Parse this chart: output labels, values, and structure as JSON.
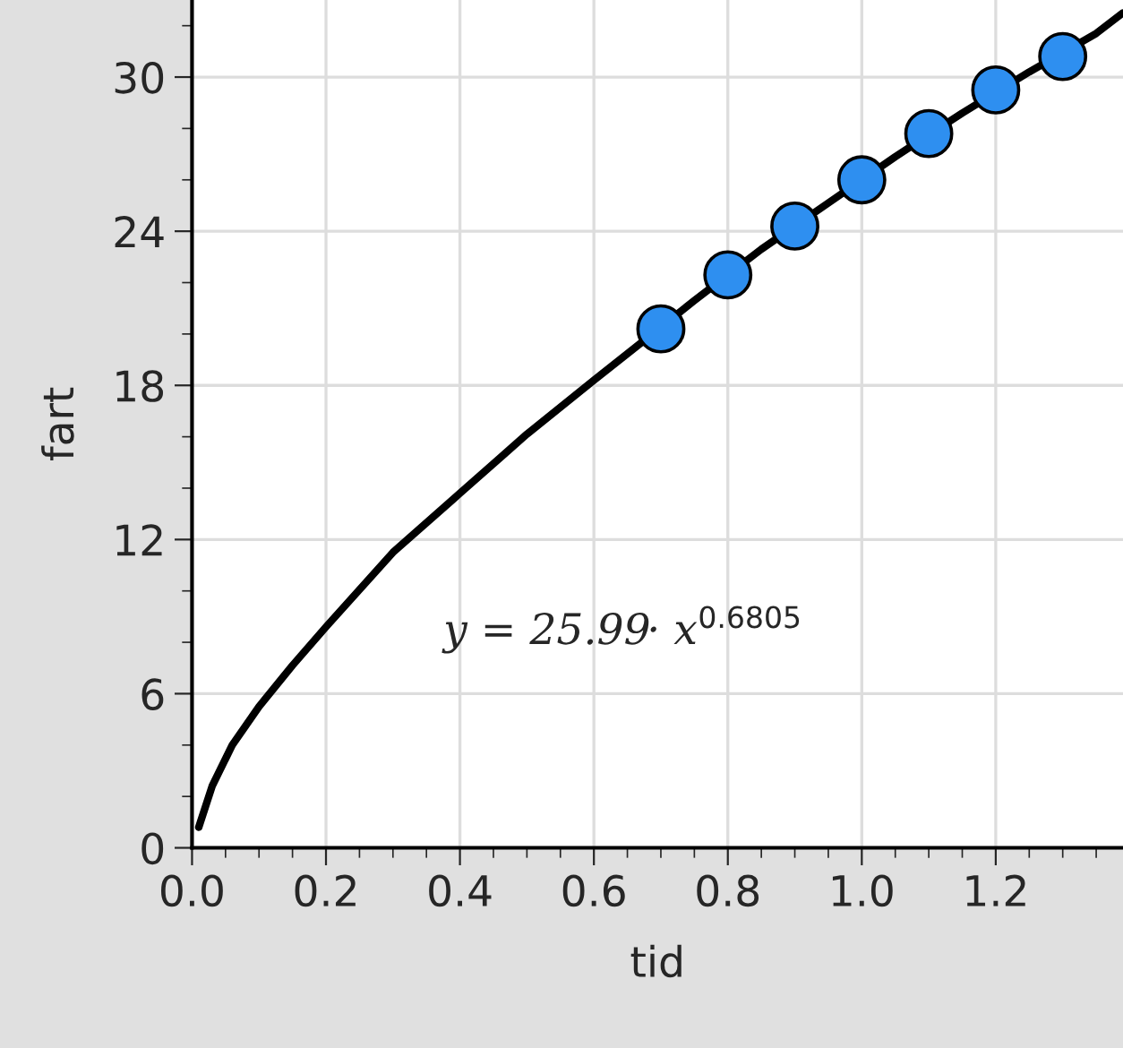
{
  "chart_data": {
    "type": "scatter",
    "xlabel": "tid",
    "ylabel": "fart",
    "x": [
      0.7,
      0.8,
      0.9,
      1.0,
      1.1,
      1.2,
      1.3
    ],
    "series": [
      {
        "color": "#2e8ff0",
        "marker": "circle",
        "values": [
          20.2,
          22.3,
          24.2,
          26.0,
          27.8,
          29.5,
          30.8
        ]
      },
      {
        "type": "line",
        "marker": "none",
        "color": "#000000",
        "x": [
          0.01,
          0.03,
          0.06,
          0.1,
          0.15,
          0.2,
          0.3,
          0.4,
          0.5,
          0.6,
          0.75,
          0.85,
          0.95,
          1.05,
          1.15,
          1.25,
          1.35,
          1.39
        ],
        "values": [
          0.8,
          2.4,
          4.0,
          5.5,
          7.1,
          8.6,
          11.5,
          13.8,
          16.1,
          18.2,
          21.3,
          23.3,
          25.1,
          26.9,
          28.6,
          30.2,
          31.7,
          32.5
        ]
      }
    ],
    "annotations": [
      "y = 25.99· x$^{0.6805}$"
    ],
    "xlim": [
      0,
      1.39
    ],
    "ylim": [
      0,
      33
    ],
    "xticks": [
      {
        "value": 0,
        "label": "0.0"
      },
      {
        "value": 0.2,
        "label": "0.2"
      },
      {
        "value": 0.4,
        "label": "0.4"
      },
      {
        "value": 0.6,
        "label": "0.6"
      },
      {
        "value": 0.8,
        "label": "0.8"
      },
      {
        "value": 1.0,
        "label": "1.0"
      },
      {
        "value": 1.2,
        "label": "1.2"
      }
    ],
    "yticks": [
      0,
      6,
      12,
      18,
      24,
      30
    ],
    "grid": true,
    "line_style": "solid"
  }
}
